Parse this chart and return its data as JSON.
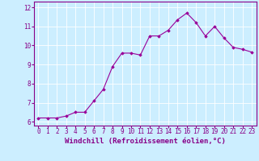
{
  "x": [
    0,
    1,
    2,
    3,
    4,
    5,
    6,
    7,
    8,
    9,
    10,
    11,
    12,
    13,
    14,
    15,
    16,
    17,
    18,
    19,
    20,
    21,
    22,
    23
  ],
  "y": [
    6.2,
    6.2,
    6.2,
    6.3,
    6.5,
    6.5,
    7.1,
    7.7,
    8.9,
    9.6,
    9.6,
    9.5,
    10.5,
    10.5,
    10.8,
    11.35,
    11.7,
    11.2,
    10.5,
    11.0,
    10.4,
    9.9,
    9.8,
    9.65
  ],
  "line_color": "#990099",
  "marker": "D",
  "markersize": 1.8,
  "linewidth": 0.8,
  "xlabel": "Windchill (Refroidissement éolien,°C)",
  "xlabel_fontsize": 6.5,
  "xlim": [
    -0.5,
    23.5
  ],
  "ylim": [
    5.8,
    12.3
  ],
  "yticks": [
    6,
    7,
    8,
    9,
    10,
    11,
    12
  ],
  "xticks": [
    0,
    1,
    2,
    3,
    4,
    5,
    6,
    7,
    8,
    9,
    10,
    11,
    12,
    13,
    14,
    15,
    16,
    17,
    18,
    19,
    20,
    21,
    22,
    23
  ],
  "bg_color": "#cceeff",
  "grid_color": "#ffffff",
  "tick_fontsize": 5.5,
  "tick_color": "#880088",
  "label_color": "#880088",
  "spine_color": "#880088"
}
